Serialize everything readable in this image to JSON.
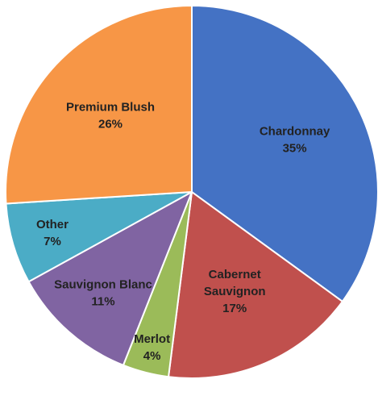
{
  "chart_data": {
    "type": "pie",
    "title": "",
    "start_angle_deg": 0,
    "direction": "clockwise",
    "legend": "none",
    "slices": [
      {
        "name": "Chardonnay",
        "label_lines": [
          "Chardonnay"
        ],
        "value": 35,
        "value_label": "35%",
        "color": "#4472C4"
      },
      {
        "name": "Cabernet Sauvignon",
        "label_lines": [
          "Cabernet",
          "Sauvignon"
        ],
        "value": 17,
        "value_label": "17%",
        "color": "#C0504D"
      },
      {
        "name": "Merlot",
        "label_lines": [
          "Merlot"
        ],
        "value": 4,
        "value_label": "4%",
        "color": "#9BBB59"
      },
      {
        "name": "Sauvignon Blanc",
        "label_lines": [
          "Sauvignon Blanc"
        ],
        "value": 11,
        "value_label": "11%",
        "color": "#8064A2"
      },
      {
        "name": "Other",
        "label_lines": [
          "Other"
        ],
        "value": 7,
        "value_label": "7%",
        "color": "#4BACC6"
      },
      {
        "name": "Premium Blush",
        "label_lines": [
          "Premium Blush"
        ],
        "value": 26,
        "value_label": "26%",
        "color": "#F79646"
      }
    ]
  }
}
